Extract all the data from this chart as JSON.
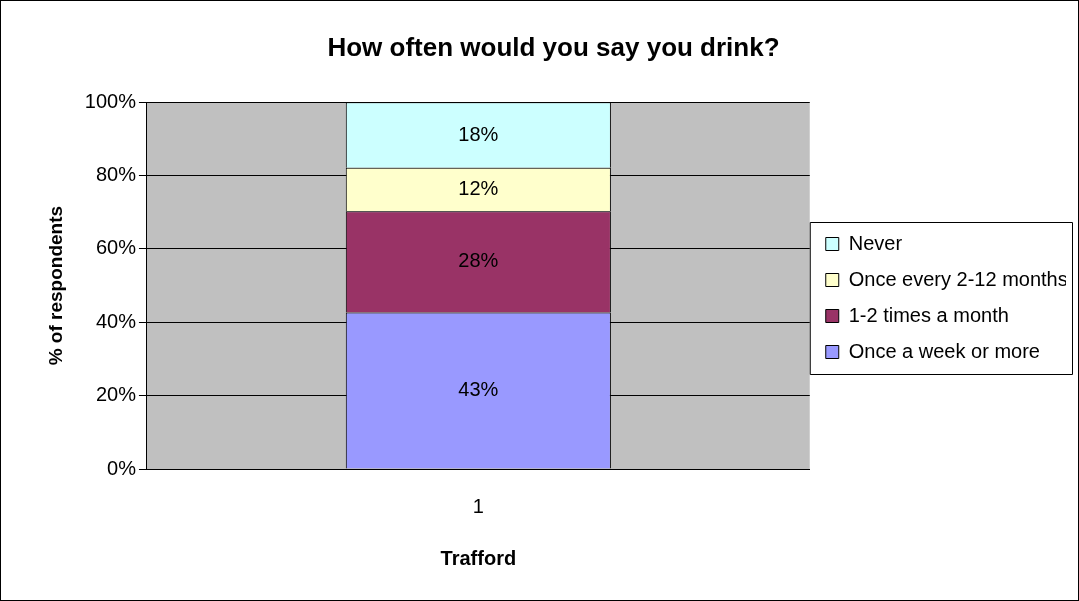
{
  "chart_data": {
    "type": "bar",
    "title": "How often would you say you drink?",
    "xlabel": "Trafford",
    "ylabel": "% of respondents",
    "categories": [
      "1"
    ],
    "stacked": true,
    "series": [
      {
        "name": "Once a week or more",
        "color": "#9999ff",
        "values": [
          42.7
        ],
        "value_labels": [
          "43%"
        ]
      },
      {
        "name": "1-2 times a month",
        "color": "#993366",
        "values": [
          27.6
        ],
        "value_labels": [
          "28%"
        ]
      },
      {
        "name": "Once every 2-12 months",
        "color": "#ffffcc",
        "values": [
          11.8
        ],
        "value_labels": [
          "12%"
        ]
      },
      {
        "name": "Never",
        "color": "#ccffff",
        "values": [
          17.9
        ],
        "value_labels": [
          "18%"
        ]
      }
    ],
    "ylim": [
      0,
      100
    ],
    "yticks": [
      {
        "value": 0,
        "label": "0%"
      },
      {
        "value": 20,
        "label": "20%"
      },
      {
        "value": 40,
        "label": "40%"
      },
      {
        "value": 60,
        "label": "60%"
      },
      {
        "value": 80,
        "label": "80%"
      },
      {
        "value": 100,
        "label": "100%"
      }
    ],
    "grid": "y",
    "legend": "right"
  }
}
